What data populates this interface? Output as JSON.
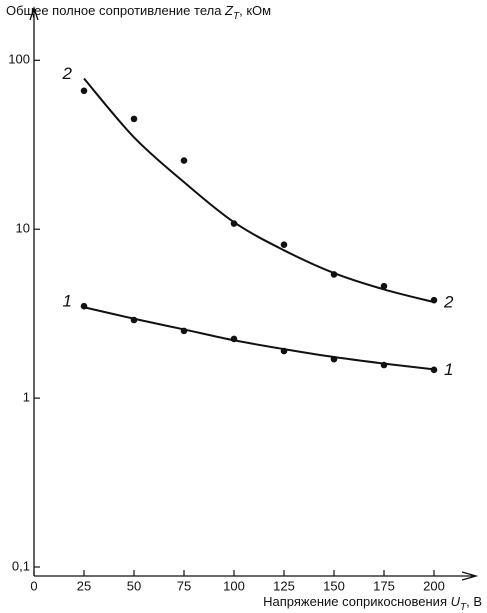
{
  "chart_data": {
    "type": "scatter",
    "y_label": {
      "text": "Общее полное сопротивление тела ",
      "symbol": "Z",
      "subscript": "T",
      "unit": ", кОм"
    },
    "x_label": {
      "text": "Напряжение соприкосновения ",
      "symbol": "U",
      "subscript": "T",
      "unit": ", В"
    },
    "x": [
      25,
      50,
      75,
      100,
      125,
      150,
      175,
      200
    ],
    "xlim": [
      0,
      218
    ],
    "xticks": [
      0,
      25,
      50,
      75,
      100,
      125,
      150,
      175,
      200
    ],
    "ylim": [
      0.1,
      204
    ],
    "yticks": [
      {
        "value": 0.1,
        "label": "0,1"
      },
      1,
      10,
      100
    ],
    "log_y": true,
    "color": "#111111",
    "series": [
      {
        "name": "1",
        "values": [
          3.5,
          2.9,
          2.5,
          2.24,
          1.9,
          1.7,
          1.57,
          1.47
        ],
        "fit": [
          3.45,
          2.95,
          2.55,
          2.2,
          1.95,
          1.75,
          1.6,
          1.48
        ]
      },
      {
        "name": "2",
        "values": [
          66,
          45,
          25.5,
          10.8,
          8.1,
          5.4,
          4.6,
          3.8
        ],
        "fit": [
          78,
          35,
          19,
          11,
          7.5,
          5.5,
          4.4,
          3.7
        ]
      }
    ]
  }
}
